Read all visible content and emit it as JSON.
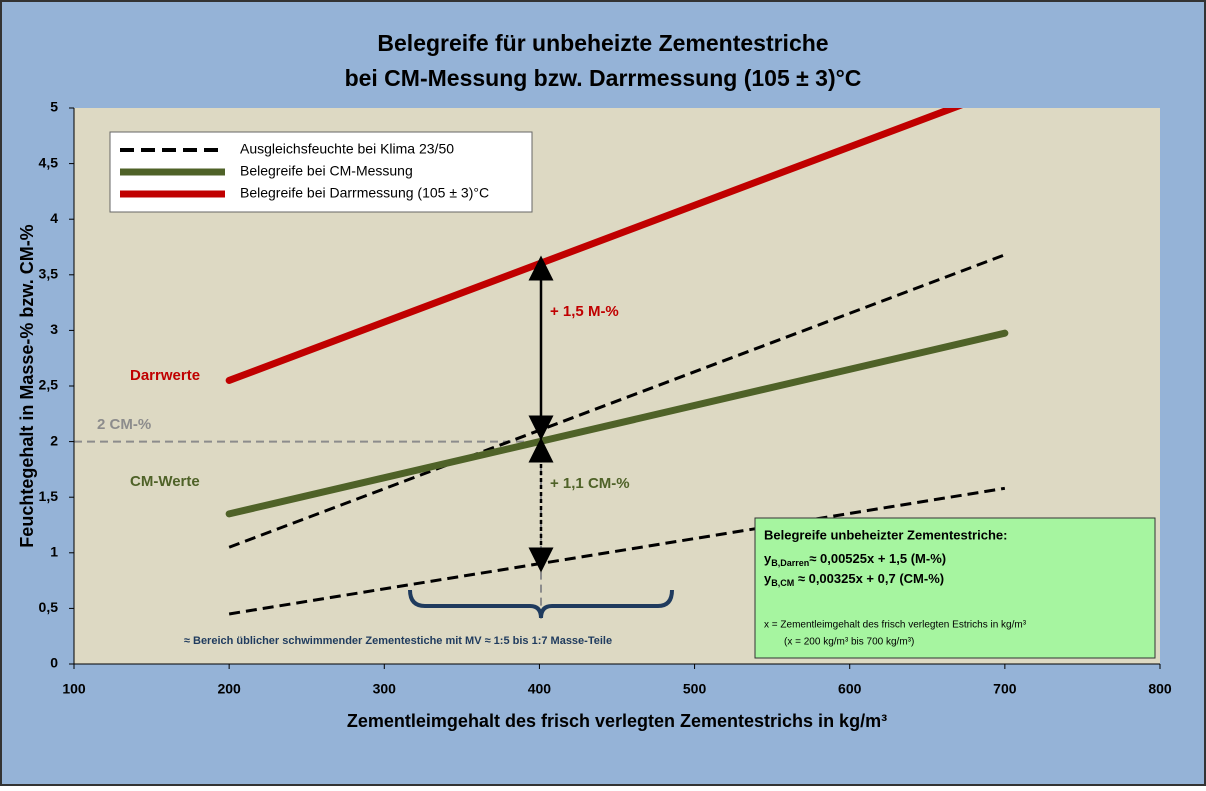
{
  "chart_data": {
    "type": "line",
    "title": [
      "Belegreife für unbeheizte Zementestriche",
      "bei CM-Messung bzw. Darrmessung (105 ± 3)°C"
    ],
    "x_label": "Zementleimgehalt des frisch verlegten Zementestrichs in kg/m³",
    "y_label": "Feuchtegehalt in Masse-% bzw. CM-%",
    "xlim": [
      100,
      800
    ],
    "xticks": [
      100,
      200,
      300,
      400,
      500,
      600,
      700,
      800
    ],
    "ylim": [
      0,
      5
    ],
    "yticks": [
      0,
      {
        "value": 0.5,
        "label": "0,5"
      },
      1,
      {
        "value": 1.5,
        "label": "1,5"
      },
      2,
      {
        "value": 2.5,
        "label": "2,5"
      },
      3,
      {
        "value": 3.5,
        "label": "3,5"
      },
      4,
      {
        "value": 4.5,
        "label": "4,5"
      },
      5
    ],
    "series": [
      {
        "name": "Ausgleichsfeuchte bei Klima 23/50",
        "color": "#000000",
        "dash": true,
        "x": [
          200,
          700
        ],
        "values": [
          1.05,
          3.68
        ]
      },
      {
        "name": "Belegreife bei CM-Messung",
        "color": "#4f6228",
        "x": [
          200,
          700
        ],
        "values": [
          1.35,
          2.975
        ]
      },
      {
        "name": "Belegreife bei Darrmessung (105 ± 3)°C",
        "color": "#c00000",
        "x": [
          200,
          700
        ],
        "values": [
          2.55,
          5.175
        ]
      },
      {
        "color": "#000000",
        "dash": true,
        "x": [
          200,
          700
        ],
        "values": [
          0.45,
          1.58
        ]
      }
    ],
    "annotations": {
      "darr": "Darrwerte",
      "cm": "CM-Werte",
      "two": "2 CM-%",
      "plus15": "+ 1,5 M-%",
      "plus11": "+ 1,1 CM-%",
      "range": "≈ Bereich üblicher schwimmender Zementestiche mit MV ≈ 1:5 bis 1:7 Masse-Teile",
      "box_title": "Belegreife unbeheizter Zementestriche:",
      "f1": [
        "y",
        "B,Darren",
        "≈ 0,00525x + 1,5  (M-%)"
      ],
      "f2": [
        "y",
        "B,CM",
        "   ≈ 0,00325x + 0,7  (CM-%)"
      ],
      "note1": "x = Zementleimgehalt des frisch verlegten Estrichs in kg/m³",
      "note2": "(x = 200 kg/m³ bis 700 kg/m³)"
    }
  }
}
